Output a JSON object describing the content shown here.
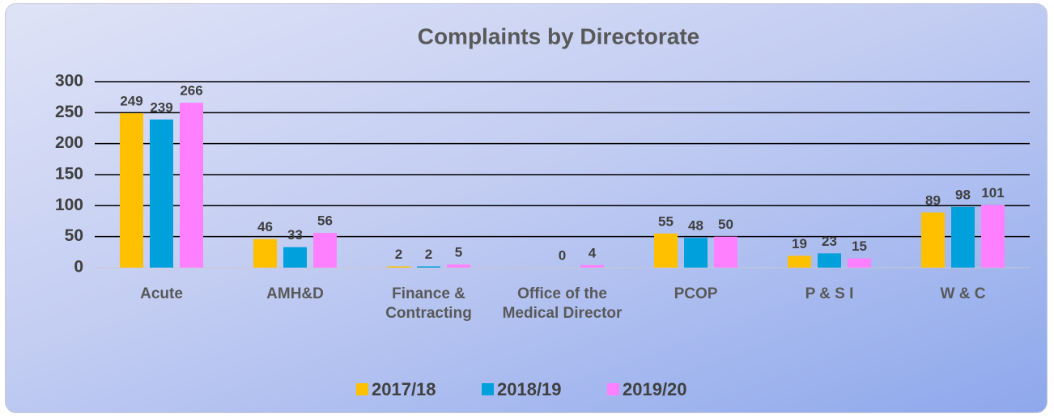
{
  "chart_data": {
    "type": "bar",
    "title": "Complaints by Directorate",
    "categories": [
      "Acute",
      "AMH&D",
      "Finance & Contracting",
      "Office of the Medical Director",
      "PCOP",
      "P & S I",
      "W & C"
    ],
    "series": [
      {
        "name": "2017/18",
        "color": "#FFC000",
        "values": [
          249,
          46,
          2,
          null,
          55,
          19,
          89
        ]
      },
      {
        "name": "2018/19",
        "color": "#00A0DC",
        "values": [
          239,
          33,
          2,
          0,
          48,
          23,
          98
        ]
      },
      {
        "name": "2019/20",
        "color": "#FF80FF",
        "values": [
          266,
          56,
          5,
          4,
          50,
          15,
          101
        ]
      }
    ],
    "ylim": [
      0,
      300
    ],
    "yticks": [
      0,
      50,
      100,
      150,
      200,
      250,
      300
    ],
    "grid": true,
    "legend": "bottom"
  }
}
